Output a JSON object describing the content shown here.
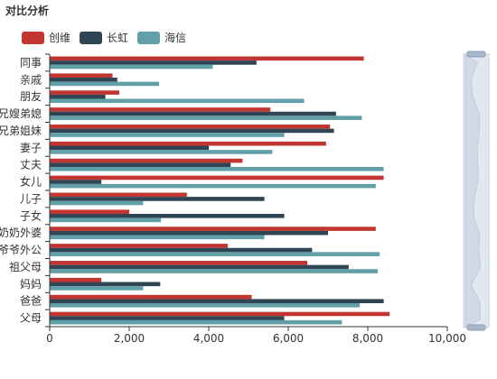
{
  "chart_data": {
    "type": "bar",
    "orientation": "horizontal",
    "title": "对比分析",
    "categories": [
      "父母",
      "爸爸",
      "妈妈",
      "祖父母",
      "爷爷外公",
      "奶奶外婆",
      "子女",
      "儿子",
      "女儿",
      "丈夫",
      "妻子",
      "兄弟姐妹",
      "兄嫂弟媳",
      "朋友",
      "亲戚",
      "同事"
    ],
    "series": [
      {
        "name": "创维",
        "color": "#c23531",
        "values": [
          8550,
          5080,
          1300,
          6480,
          4480,
          8200,
          2000,
          3450,
          8400,
          4850,
          6950,
          7050,
          5550,
          1750,
          1580,
          7900
        ]
      },
      {
        "name": "长虹",
        "color": "#2f4554",
        "values": [
          5900,
          8400,
          2780,
          7520,
          6600,
          7000,
          5900,
          5400,
          1300,
          4550,
          4000,
          7150,
          7200,
          1400,
          1700,
          5200
        ]
      },
      {
        "name": "海信",
        "color": "#61a0a8",
        "values": [
          7350,
          7800,
          2350,
          8250,
          8300,
          5400,
          2800,
          2350,
          8200,
          8400,
          5600,
          5900,
          7850,
          6400,
          2750,
          4100
        ]
      }
    ],
    "xlim": [
      0,
      10000
    ],
    "xticks": [
      "0",
      "2,000",
      "4,000",
      "6,000",
      "8,000",
      "10,000"
    ],
    "legend_position": "top-left",
    "grid": false,
    "datazoom": {
      "orientation": "vertical",
      "start": 0,
      "end": 100
    }
  }
}
